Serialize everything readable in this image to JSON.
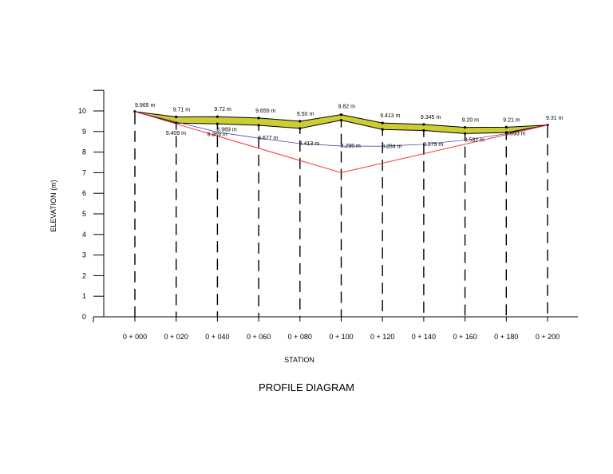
{
  "chart_data": {
    "type": "line",
    "title": "PROFILE DIAGRAM",
    "xlabel": "STATION",
    "ylabel": "ELEVATION (m)",
    "ylim": [
      0,
      11
    ],
    "y_ticks": [
      "0",
      "1",
      "2",
      "3",
      "4",
      "5",
      "6",
      "7",
      "8",
      "9",
      "10"
    ],
    "stations": [
      "0 + 000",
      "0 + 020",
      "0 + 040",
      "0 + 060",
      "0 + 080",
      "0 + 100",
      "0 + 120",
      "0 + 140",
      "0 + 160",
      "0 + 180",
      "0 + 200"
    ],
    "x": [
      0,
      20,
      40,
      60,
      80,
      100,
      120,
      140,
      160,
      180,
      200
    ],
    "series": [
      {
        "values": [
          9.965,
          9.71,
          9.72,
          9.655,
          9.5,
          9.82,
          9.413,
          9.345,
          9.2,
          9.21,
          9.31
        ],
        "labels": [
          "9.965 m",
          "9.71 m",
          "9.72 m",
          "9.655 m",
          "9.50 m",
          "9.82 m",
          "9.413 m",
          "9.345 m",
          "9.20 m",
          "9.21 m",
          "9.31 m"
        ],
        "color": "#000000"
      },
      {
        "values": [
          9.965,
          9.409,
          9.369,
          9.3,
          9.15,
          9.55,
          9.1,
          9.05,
          8.9,
          8.95,
          9.31
        ],
        "labels": [
          "",
          "9.409 m",
          "9.369 m",
          "",
          "",
          "",
          "",
          "",
          "",
          "",
          ""
        ],
        "color": "#000000"
      },
      {
        "values": [
          9.965,
          null,
          8.969,
          8.677,
          8.413,
          8.295,
          8.284,
          8.379,
          8.582,
          8.893,
          9.31
        ],
        "labels": [
          "",
          "",
          "8.969 m",
          "8.677 m",
          "8.413 m",
          "8.295 m",
          "8.284 m",
          "8.379 m",
          "8.582 m",
          "8.893 m",
          ""
        ],
        "color": "#3333aa"
      },
      {
        "values": [
          9.965,
          null,
          null,
          null,
          null,
          7.0,
          null,
          null,
          null,
          null,
          9.31
        ],
        "labels": [],
        "color": "#ff3333"
      }
    ],
    "fill_color": "#cccc33",
    "grid": false
  }
}
